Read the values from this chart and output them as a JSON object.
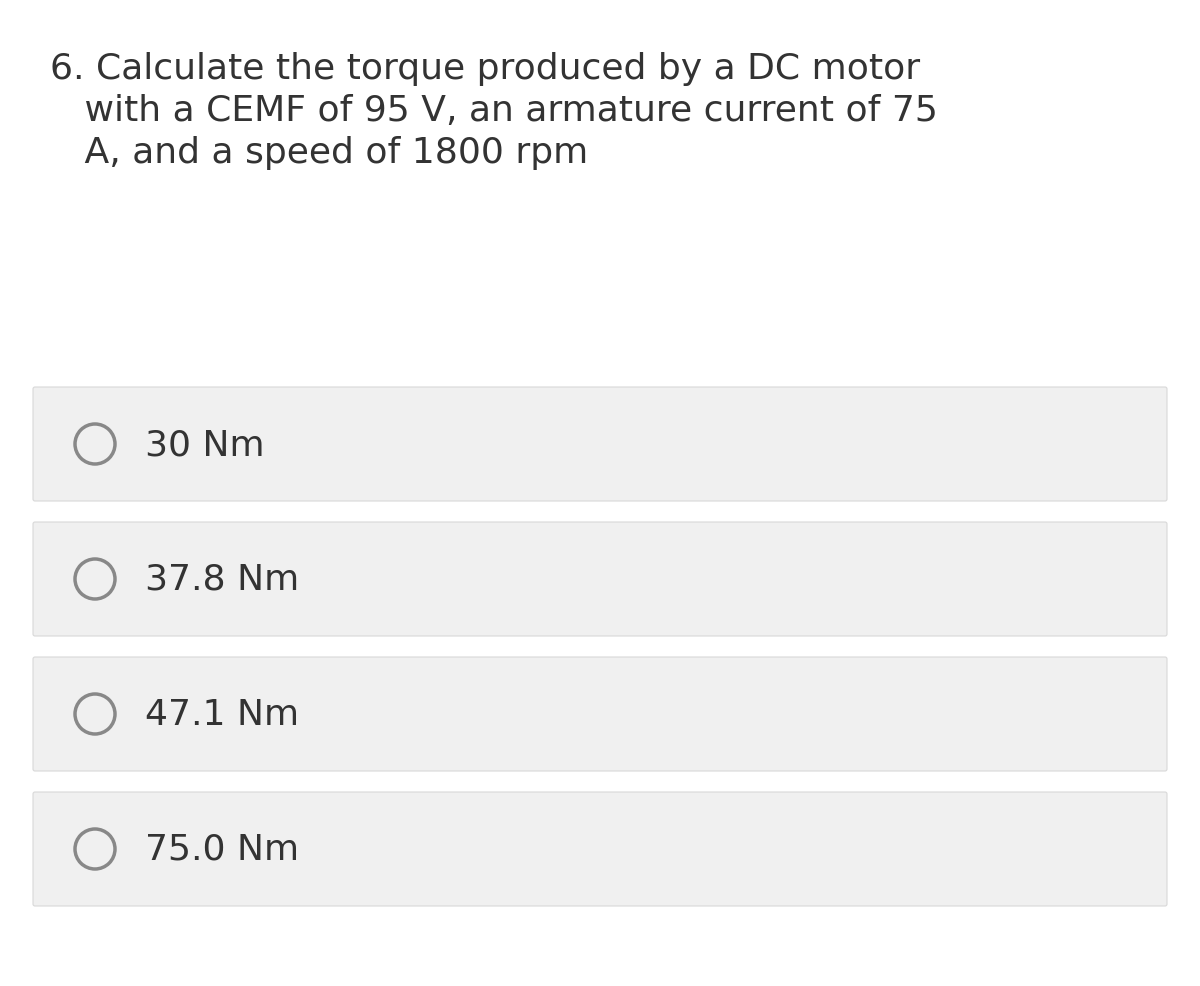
{
  "background_color": "#ffffff",
  "question_line1": "6. Calculate the torque produced by a DC motor",
  "question_line2": "   with a CEMF of 95 V, an armature current of 75",
  "question_line3": "   A, and a speed of 1800 rpm",
  "question_fontsize": 26,
  "question_color": "#333333",
  "options": [
    "30 Nm",
    "37.8 Nm",
    "47.1 Nm",
    "75.0 Nm"
  ],
  "option_fontsize": 26,
  "option_color": "#333333",
  "box_facecolor": "#f0f0f0",
  "box_edgecolor": "#d8d8d8",
  "circle_edgecolor": "#888888",
  "circle_facecolor": "#f0f0f0",
  "circle_linewidth": 2.5,
  "background_color_fig": "#ffffff"
}
